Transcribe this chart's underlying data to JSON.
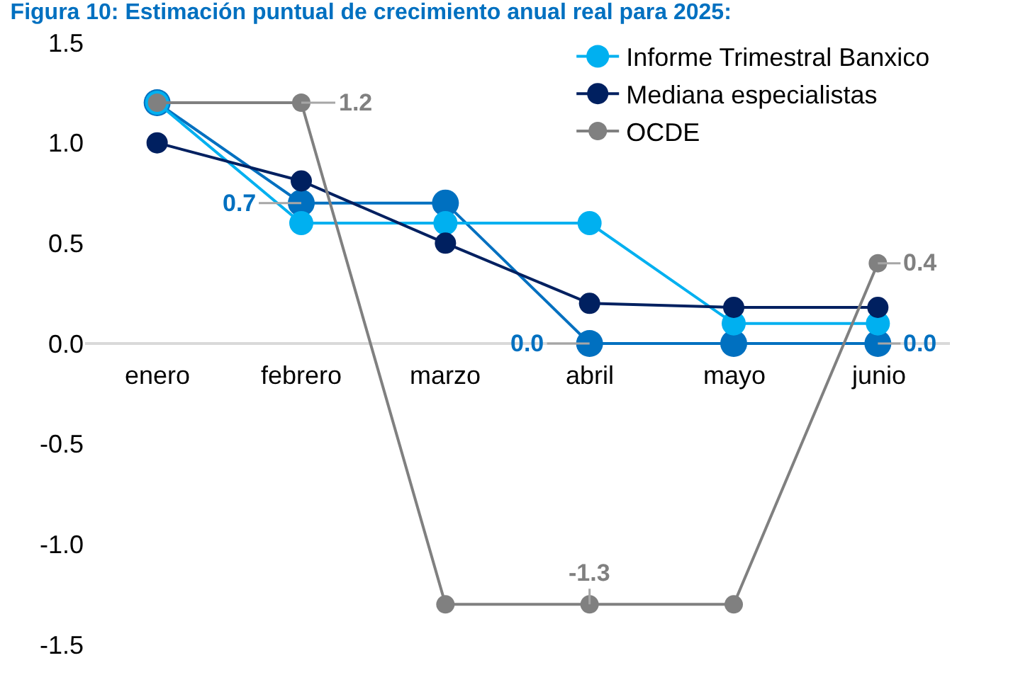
{
  "chart_data": {
    "type": "line",
    "title": "Figura 10: Estimación puntual de crecimiento anual real para 2025:",
    "categories": [
      "enero",
      "febrero",
      "marzo",
      "abril",
      "mayo",
      "junio"
    ],
    "series": [
      {
        "color": "#0070c0",
        "values": [
          1.2,
          0.7,
          0.7,
          0.0,
          0.0,
          0.0
        ],
        "value_labels": [
          null,
          "0.7",
          null,
          "0.0",
          null,
          "0.0"
        ]
      },
      {
        "name": "Informe Trimestral Banxico",
        "color": "#00b0f0",
        "values": [
          1.2,
          0.6,
          0.6,
          0.6,
          0.1,
          0.1
        ]
      },
      {
        "name": "Mediana especialistas",
        "color": "#002060",
        "values": [
          1.0,
          0.81,
          0.5,
          0.2,
          0.18,
          0.18
        ]
      },
      {
        "name": "OCDE",
        "color": "#808080",
        "values": [
          1.2,
          1.2,
          -1.3,
          -1.3,
          -1.3,
          0.4
        ],
        "value_labels": [
          null,
          "1.2",
          null,
          "-1.3",
          null,
          "0.4"
        ]
      }
    ],
    "ylim": [
      -1.5,
      1.5
    ],
    "yticks": [
      {
        "value": -1.5,
        "label": "-1.5"
      },
      {
        "value": -1.0,
        "label": "-1.0"
      },
      {
        "value": -0.5,
        "label": "-0.5"
      },
      {
        "value": 0,
        "label": "0.0"
      },
      {
        "value": 0.5,
        "label": "0.5"
      },
      {
        "value": 1.0,
        "label": "1.0"
      },
      {
        "value": 1.5,
        "label": "1.5"
      }
    ],
    "legend": "top right",
    "marker": "circle",
    "line_style": "solid"
  }
}
